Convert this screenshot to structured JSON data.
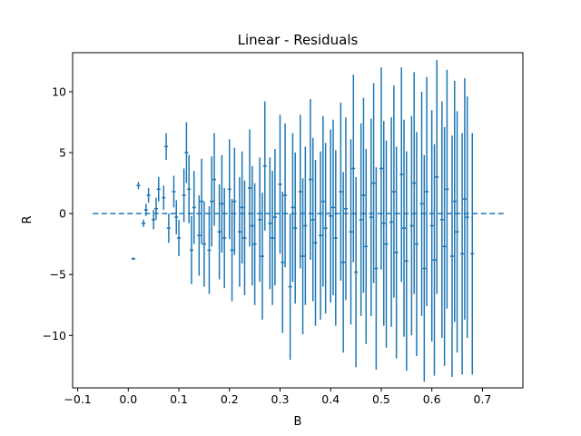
{
  "chart_data": {
    "type": "scatter",
    "title": "Linear - Residuals",
    "xlabel": "B",
    "ylabel": "R",
    "xlim": [
      -0.11,
      0.78
    ],
    "ylim": [
      -14.3,
      13.2
    ],
    "xticks": [
      -0.1,
      0.0,
      0.1,
      0.2,
      0.3,
      0.4,
      0.5,
      0.6,
      0.7
    ],
    "xtick_labels": [
      "−0.1",
      "0.0",
      "0.1",
      "0.2",
      "0.3",
      "0.4",
      "0.5",
      "0.6",
      "0.7"
    ],
    "yticks": [
      -10,
      -5,
      0,
      5,
      10
    ],
    "ytick_labels": [
      "−10",
      "−5",
      "0",
      "5",
      "10"
    ],
    "grid": false,
    "colors": {
      "series": "#1f77b4"
    },
    "reference_line": {
      "y": 0,
      "x_range": [
        -0.07,
        0.745
      ],
      "style": "dashed"
    },
    "series": [
      {
        "style": "errorbar",
        "x": [
          0.01,
          0.02,
          0.03,
          0.035,
          0.04,
          0.05,
          0.055,
          0.06,
          0.07,
          0.075,
          0.08,
          0.09,
          0.095,
          0.1,
          0.11,
          0.115,
          0.12,
          0.125,
          0.13,
          0.14,
          0.145,
          0.15,
          0.16,
          0.165,
          0.17,
          0.18,
          0.185,
          0.19,
          0.2,
          0.205,
          0.21,
          0.22,
          0.225,
          0.23,
          0.24,
          0.245,
          0.25,
          0.26,
          0.265,
          0.27,
          0.28,
          0.285,
          0.29,
          0.3,
          0.305,
          0.31,
          0.32,
          0.325,
          0.33,
          0.34,
          0.345,
          0.35,
          0.36,
          0.365,
          0.37,
          0.38,
          0.385,
          0.39,
          0.4,
          0.405,
          0.41,
          0.42,
          0.425,
          0.43,
          0.44,
          0.445,
          0.45,
          0.46,
          0.465,
          0.47,
          0.48,
          0.485,
          0.49,
          0.5,
          0.505,
          0.51,
          0.52,
          0.525,
          0.53,
          0.54,
          0.545,
          0.55,
          0.56,
          0.565,
          0.57,
          0.58,
          0.585,
          0.59,
          0.6,
          0.605,
          0.61,
          0.62,
          0.625,
          0.63,
          0.64,
          0.645,
          0.65,
          0.66,
          0.665,
          0.67,
          0.68
        ],
        "y": [
          -3.7,
          2.3,
          -0.8,
          0.3,
          1.5,
          -0.5,
          0.4,
          2.0,
          1.3,
          5.5,
          -1.2,
          1.8,
          -0.3,
          -2.0,
          1.5,
          5.0,
          2.0,
          -3.0,
          0.5,
          -1.8,
          1.0,
          -2.5,
          -3.0,
          1.0,
          2.8,
          -1.5,
          0.8,
          -2.0,
          2.0,
          -3.0,
          1.0,
          -1.5,
          0.5,
          -2.0,
          2.1,
          -1.0,
          -2.5,
          -0.5,
          -3.5,
          3.9,
          -0.8,
          -2.0,
          -0.3,
          2.4,
          -4.0,
          1.5,
          -6.0,
          0.5,
          -1.2,
          1.8,
          -3.5,
          -1.0,
          2.8,
          -0.5,
          -2.4,
          -1.8,
          1.0,
          -1.2,
          -0.2,
          0.5,
          -2.0,
          1.8,
          -4.0,
          0.4,
          -1.5,
          3.7,
          -4.8,
          -0.5,
          1.5,
          -2.7,
          -0.3,
          2.5,
          -4.5,
          3.7,
          -0.8,
          -2.5,
          -0.7,
          1.8,
          -3.2,
          3.2,
          -1.2,
          -3.9,
          -1.0,
          2.5,
          -2.5,
          0.8,
          -4.5,
          1.8,
          -1.0,
          -3.8,
          3.0,
          -0.5,
          -2.7,
          2.0,
          -3.5,
          1.0,
          -1.5,
          -3.3,
          1.2,
          -0.3,
          -3.3
        ],
        "yerr": [
          0.1,
          0.3,
          0.3,
          0.5,
          0.6,
          0.8,
          0.9,
          1.0,
          1.0,
          1.1,
          1.2,
          1.3,
          1.4,
          1.5,
          2.2,
          2.5,
          2.8,
          2.8,
          3.0,
          3.3,
          3.5,
          3.5,
          3.6,
          3.7,
          3.8,
          3.9,
          4.0,
          4.1,
          4.1,
          4.2,
          4.4,
          4.5,
          4.6,
          4.7,
          4.8,
          4.9,
          5.0,
          5.1,
          5.2,
          5.3,
          5.4,
          5.5,
          5.6,
          5.7,
          5.8,
          5.9,
          6.0,
          6.1,
          6.2,
          6.3,
          6.4,
          6.5,
          6.6,
          6.7,
          6.8,
          6.9,
          7.0,
          7.0,
          7.1,
          7.2,
          7.2,
          7.3,
          7.4,
          7.5,
          7.6,
          7.7,
          7.8,
          7.9,
          8.0,
          8.0,
          8.1,
          8.2,
          8.3,
          8.3,
          8.4,
          8.5,
          8.6,
          8.7,
          8.7,
          8.8,
          8.9,
          9.0,
          9.0,
          9.1,
          9.2,
          9.2,
          9.3,
          9.4,
          9.5,
          9.5,
          9.6,
          9.7,
          9.8,
          9.8,
          9.9,
          9.9,
          9.9,
          9.9,
          9.9,
          9.9,
          9.9
        ]
      }
    ]
  }
}
